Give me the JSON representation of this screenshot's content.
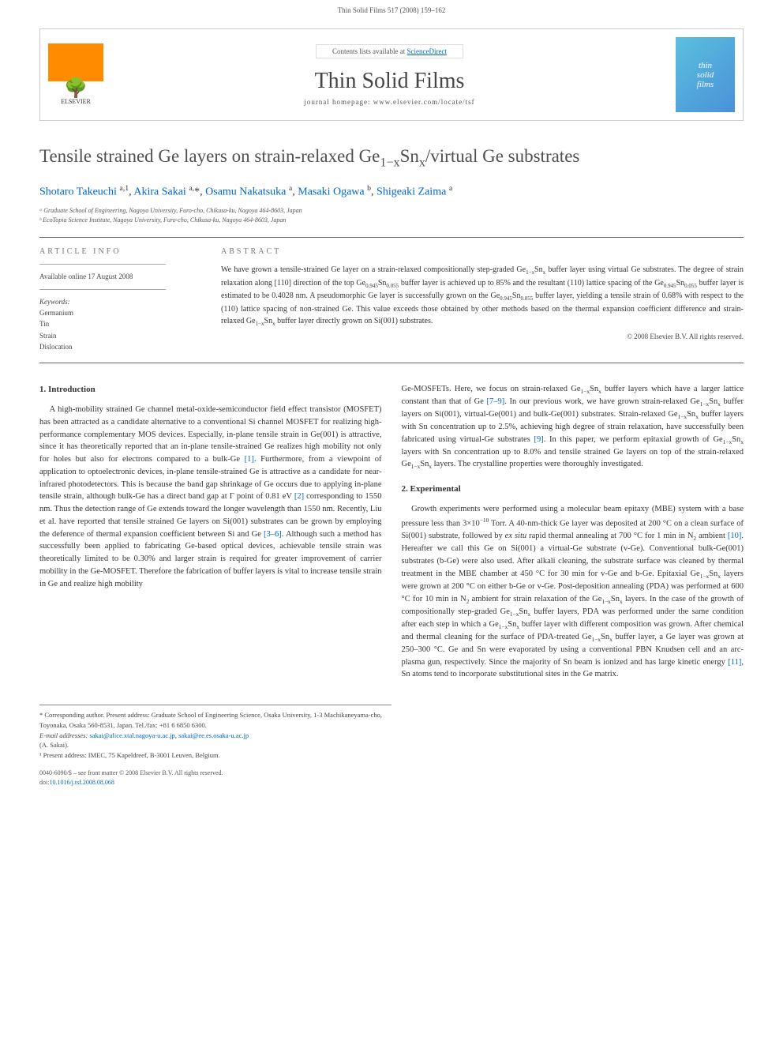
{
  "page_header": "Thin Solid Films 517 (2008) 159–162",
  "banner": {
    "elsevier_label": "ELSEVIER",
    "contents_prefix": "Contents lists available at ",
    "contents_link": "ScienceDirect",
    "journal_name": "Thin Solid Films",
    "homepage_label": "journal homepage: www.elsevier.com/locate/tsf",
    "cover_line1": "thin",
    "cover_line2": "solid",
    "cover_line3": "films"
  },
  "article": {
    "title_html": "Tensile strained Ge layers on strain-relaxed Ge<sub>1−x</sub>Sn<sub>x</sub>/virtual Ge substrates",
    "authors_html": "<a href=\"#\">Shotaro Takeuchi</a> <sup>a,1</sup>, <a href=\"#\">Akira Sakai</a> <sup>a,</sup>*, <a href=\"#\">Osamu Nakatsuka</a> <sup>a</sup>, <a href=\"#\">Masaki Ogawa</a> <sup>b</sup>, <a href=\"#\">Shigeaki Zaima</a> <sup>a</sup>",
    "affil_a": "ᵃ Graduate School of Engineering, Nagoya University, Furo-cho, Chikusa-ku, Nagoya 464-8603, Japan",
    "affil_b": "ᵇ EcoTopia Science Institute, Nagoya University, Furo-cho, Chikusa-ku, Nagoya 464-8603, Japan"
  },
  "info": {
    "label": "ARTICLE INFO",
    "available": "Available online 17 August 2008",
    "keywords_label": "Keywords:",
    "kw1": "Germanium",
    "kw2": "Tin",
    "kw3": "Strain",
    "kw4": "Dislocation"
  },
  "abstract": {
    "label": "ABSTRACT",
    "text_html": "We have grown a tensile-strained Ge layer on a strain-relaxed compositionally step-graded Ge<sub>1−x</sub>Sn<sub>x</sub> buffer layer using virtual Ge substrates. The degree of strain relaxation along [110] direction of the top Ge<sub>0.945</sub>Sn<sub>0.055</sub> buffer layer is achieved up to 85% and the resultant (110) lattice spacing of the Ge<sub>0.945</sub>Sn<sub>0.055</sub> buffer layer is estimated to be 0.4028 nm. A pseudomorphic Ge layer is successfully grown on the Ge<sub>0.945</sub>Sn<sub>0.055</sub> buffer layer, yielding a tensile strain of 0.68% with respect to the (110) lattice spacing of non-strained Ge. This value exceeds those obtained by other methods based on the thermal expansion coefficient difference and strain-relaxed Ge<sub>1−x</sub>Sn<sub>x</sub> buffer layer directly grown on Si(001) substrates.",
    "copyright": "© 2008 Elsevier B.V. All rights reserved."
  },
  "body": {
    "intro_heading": "1. Introduction",
    "intro_html": "A high-mobility strained Ge channel metal-oxide-semiconductor field effect transistor (MOSFET) has been attracted as a candidate alternative to a conventional Si channel MOSFET for realizing high-performance complementary MOS devices. Especially, in-plane tensile strain in Ge(001) is attractive, since it has theoretically reported that an in-plane tensile-strained Ge realizes high mobility not only for holes but also for electrons compared to a bulk-Ge <span class=\"ref-link\">[1]</span>. Furthermore, from a viewpoint of application to optoelectronic devices, in-plane tensile-strained Ge is attractive as a candidate for near-infrared photodetectors. This is because the band gap shrinkage of Ge occurs due to applying in-plane tensile strain, although bulk-Ge has a direct band gap at Γ point of 0.81 eV <span class=\"ref-link\">[2]</span> corresponding to 1550 nm. Thus the detection range of Ge extends toward the longer wavelength than 1550 nm. Recently, Liu et al. have reported that tensile strained Ge layers on Si(001) substrates can be grown by employing the deference of thermal expansion coefficient between Si and Ge <span class=\"ref-link\">[3–6]</span>. Although such a method has successfully been applied to fabricating Ge-based optical devices, achievable tensile strain was theoretically limited to be 0.30% and larger strain is required for greater improvement of carrier mobility in the Ge-MOSFET. Therefore the fabrication of buffer layers is vital to increase tensile strain in Ge and realize high mobility",
    "col2_top_html": "Ge-MOSFETs. Here, we focus on strain-relaxed Ge<sub>1−x</sub>Sn<sub>x</sub> buffer layers which have a larger lattice constant than that of Ge <span class=\"ref-link\">[7–9]</span>. In our previous work, we have grown strain-relaxed Ge<sub>1−x</sub>Sn<sub>x</sub> buffer layers on Si(001), virtual-Ge(001) and bulk-Ge(001) substrates. Strain-relaxed Ge<sub>1−x</sub>Sn<sub>x</sub> buffer layers with Sn concentration up to 2.5%, achieving high degree of strain relaxation, have successfully been fabricated using virtual-Ge substrates <span class=\"ref-link\">[9]</span>. In this paper, we perform epitaxial growth of Ge<sub>1−x</sub>Sn<sub>x</sub> layers with Sn concentration up to 8.0% and tensile strained Ge layers on top of the strain-relaxed Ge<sub>1−x</sub>Sn<sub>x</sub> layers. The crystalline properties were thoroughly investigated.",
    "exp_heading": "2. Experimental",
    "exp_html": "Growth experiments were performed using a molecular beam epitaxy (MBE) system with a base pressure less than 3×10<sup>−10</sup> Torr. A 40-nm-thick Ge layer was deposited at 200 °C on a clean surface of Si(001) substrate, followed by <i>ex situ</i> rapid thermal annealing at 700 °C for 1 min in N<sub>2</sub> ambient <span class=\"ref-link\">[10]</span>. Hereafter we call this Ge on Si(001) a virtual-Ge substrate (v-Ge). Conventional bulk-Ge(001) substrates (b-Ge) were also used. After alkali cleaning, the substrate surface was cleaned by thermal treatment in the MBE chamber at 450 °C for 30 min for v-Ge and b-Ge. Epitaxial Ge<sub>1−x</sub>Sn<sub>x</sub> layers were grown at 200 °C on either b-Ge or v-Ge. Post-deposition annealing (PDA) was performed at 600 °C for 10 min in N<sub>2</sub> ambient for strain relaxation of the Ge<sub>1−x</sub>Sn<sub>x</sub> layers. In the case of the growth of compositionally step-graded Ge<sub>1−x</sub>Sn<sub>x</sub> buffer layers, PDA was performed under the same condition after each step in which a Ge<sub>1−x</sub>Sn<sub>x</sub> buffer layer with different composition was grown. After chemical and thermal cleaning for the surface of PDA-treated Ge<sub>1−x</sub>Sn<sub>x</sub> buffer layer, a Ge layer was grown at 250–300 °C. Ge and Sn were evaporated by using a conventional PBN Knudsen cell and an arc-plasma gun, respectively. Since the majority of Sn beam is ionized and has large kinetic energy <span class=\"ref-link\">[11]</span>, Sn atoms tend to incorporate substitutional sites in the Ge matrix."
  },
  "footnotes": {
    "corr_html": "* Corresponding author. Present address: Graduate School of Engineering Science, Osaka University, 1-3 Machikaneyama-cho, Toyonaka, Osaka 560-8531, Japan. Tel./fax: +81 6 6850 6300.",
    "email_label": "E-mail addresses:",
    "email1": "sakai@alice.xtal.nagoya-u.ac.jp",
    "email2": "sakai@ee.es.osaka-u.ac.jp",
    "email_suffix": "(A. Sakai).",
    "present": "¹ Present address: IMEC, 75 Kapeldreef, B-3001 Leuven, Belgium."
  },
  "footer": {
    "line1": "0040-6090/$ – see front matter © 2008 Elsevier B.V. All rights reserved.",
    "doi_label": "doi:",
    "doi": "10.1016/j.tsf.2008.08.068"
  },
  "colors": {
    "link": "#0066cc",
    "text": "#333333",
    "muted": "#555555",
    "border": "#cccccc"
  }
}
